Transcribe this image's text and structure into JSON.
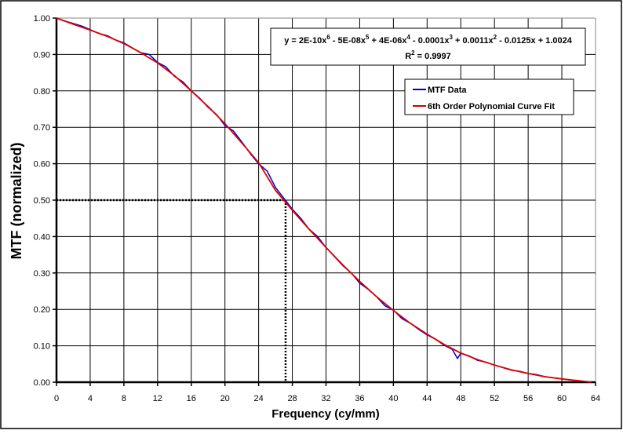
{
  "chart_data": {
    "type": "line",
    "title": "",
    "xlabel": "Frequency (cy/mm)",
    "ylabel": "MTF (normalized)",
    "xlim": [
      0,
      64
    ],
    "ylim": [
      0,
      1
    ],
    "grid": true,
    "xticks": [
      "0",
      "4",
      "8",
      "12",
      "16",
      "20",
      "24",
      "28",
      "32",
      "36",
      "40",
      "44",
      "48",
      "52",
      "56",
      "60",
      "64"
    ],
    "yticks": [
      "0.00",
      "0.10",
      "0.20",
      "0.30",
      "0.40",
      "0.50",
      "0.60",
      "0.70",
      "0.80",
      "0.90",
      "1.00"
    ],
    "legend": {
      "placement": "top-right",
      "entries": [
        "MTF Data",
        "6th Order Polynomial Curve Fit"
      ]
    },
    "equation": {
      "line1_parts": [
        "y = 2E-10x",
        "6",
        " - 5E-08x",
        "5",
        " + 4E-06x",
        "4",
        " - 0.0001x",
        "3",
        " + 0.0011x",
        "2",
        " - 0.0125x + 1.0024"
      ],
      "r2_label": "R",
      "r2_sup": "2",
      "r2_value": " = 0.9997"
    },
    "mtf50_frequency": 27.2,
    "mtf50_value": 0.5,
    "colors": {
      "data": "#0000cc",
      "fit": "#dd0000"
    },
    "series": [
      {
        "name": "MTF Data",
        "x": [
          0,
          1,
          2,
          3,
          4,
          5,
          6,
          7,
          8,
          9,
          10,
          11,
          12,
          13,
          14,
          15,
          16,
          17,
          18,
          19,
          20,
          21,
          22,
          23,
          24,
          25,
          26,
          27,
          28,
          29,
          30,
          31,
          32,
          33,
          34,
          35,
          36,
          37,
          38,
          39,
          40,
          41,
          42,
          43,
          44,
          45,
          46,
          47,
          47.6,
          48,
          49,
          50,
          51,
          52,
          53,
          54,
          55,
          56,
          57,
          58,
          59,
          60,
          61,
          62,
          63,
          63.5
        ],
        "y": [
          1.0,
          0.992,
          0.985,
          0.978,
          0.968,
          0.958,
          0.952,
          0.94,
          0.932,
          0.918,
          0.905,
          0.9,
          0.878,
          0.866,
          0.84,
          0.825,
          0.8,
          0.78,
          0.755,
          0.735,
          0.705,
          0.69,
          0.66,
          0.628,
          0.6,
          0.58,
          0.535,
          0.505,
          0.475,
          0.45,
          0.42,
          0.4,
          0.37,
          0.345,
          0.32,
          0.3,
          0.272,
          0.255,
          0.235,
          0.21,
          0.198,
          0.175,
          0.162,
          0.145,
          0.13,
          0.118,
          0.102,
          0.09,
          0.065,
          0.08,
          0.072,
          0.06,
          0.055,
          0.047,
          0.04,
          0.033,
          0.03,
          0.024,
          0.021,
          0.015,
          0.012,
          0.009,
          0.006,
          0.004,
          0.002,
          0.0
        ]
      },
      {
        "name": "6th Order Polynomial Curve Fit",
        "x": [
          0,
          2,
          4,
          6,
          8,
          10,
          12,
          14,
          16,
          18,
          20,
          22,
          24,
          26,
          28,
          30,
          32,
          34,
          36,
          38,
          40,
          42,
          44,
          46,
          48,
          50,
          52,
          54,
          56,
          58,
          60,
          62,
          63.5
        ],
        "y": [
          1.0,
          0.983,
          0.967,
          0.95,
          0.93,
          0.905,
          0.877,
          0.842,
          0.8,
          0.757,
          0.71,
          0.657,
          0.603,
          0.527,
          0.472,
          0.42,
          0.37,
          0.322,
          0.277,
          0.235,
          0.197,
          0.162,
          0.132,
          0.104,
          0.08,
          0.062,
          0.047,
          0.034,
          0.024,
          0.015,
          0.009,
          0.004,
          0.0
        ]
      }
    ]
  }
}
